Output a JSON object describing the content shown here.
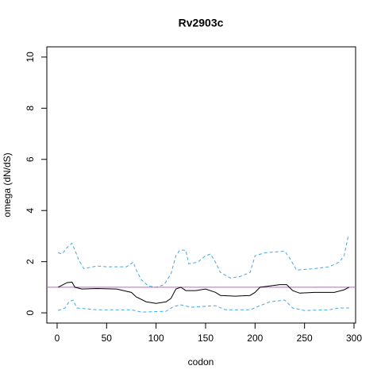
{
  "chart_data": {
    "type": "line",
    "title": "Rv2903c",
    "xlabel": "codon",
    "ylabel": "omega (dN/dS)",
    "xlim": [
      -10.4,
      301.6
    ],
    "ylim": [
      -0.4,
      10.4
    ],
    "xticks": [
      0,
      50,
      100,
      150,
      200,
      250,
      300
    ],
    "yticks": [
      0,
      2,
      4,
      6,
      8,
      10
    ],
    "reference_line": {
      "value": 1,
      "color": "#c060c0"
    },
    "series": [
      {
        "color": "#3fa9e6",
        "linestyle": "dashed",
        "x": [
          1,
          5,
          10,
          15,
          18,
          22,
          27,
          40,
          50,
          70,
          77,
          80,
          85,
          92,
          100,
          108,
          115,
          120,
          124,
          130,
          133,
          142,
          150,
          155,
          160,
          165,
          175,
          185,
          195,
          200,
          210,
          230,
          235,
          242,
          260,
          275,
          285,
          290,
          294
        ],
        "values": [
          2.35,
          2.3,
          2.55,
          2.72,
          2.45,
          2.05,
          1.73,
          1.83,
          1.8,
          1.8,
          1.98,
          1.67,
          1.3,
          1.05,
          1.0,
          1.1,
          1.52,
          2.23,
          2.45,
          2.45,
          1.92,
          1.98,
          2.23,
          2.3,
          1.98,
          1.58,
          1.36,
          1.42,
          1.58,
          2.23,
          2.35,
          2.41,
          2.14,
          1.67,
          1.73,
          1.8,
          1.98,
          2.23,
          2.97
        ]
      },
      {
        "color": "#000000",
        "linestyle": "solid",
        "x": [
          1,
          10,
          15,
          18,
          25,
          40,
          60,
          75,
          80,
          90,
          100,
          110,
          115,
          120,
          125,
          130,
          140,
          150,
          160,
          165,
          180,
          195,
          200,
          205,
          215,
          225,
          232,
          238,
          245,
          260,
          280,
          290,
          295
        ],
        "values": [
          1.0,
          1.18,
          1.2,
          1.0,
          0.93,
          0.95,
          0.93,
          0.8,
          0.62,
          0.43,
          0.37,
          0.43,
          0.56,
          0.93,
          1.0,
          0.87,
          0.87,
          0.93,
          0.8,
          0.68,
          0.65,
          0.68,
          0.8,
          1.0,
          1.05,
          1.1,
          1.1,
          0.87,
          0.77,
          0.8,
          0.8,
          0.9,
          1.0
        ]
      },
      {
        "color": "#3fa9e6",
        "linestyle": "dashed",
        "x": [
          1,
          8,
          12,
          16,
          20,
          40,
          75,
          85,
          110,
          118,
          125,
          135,
          160,
          170,
          195,
          205,
          215,
          230,
          238,
          250,
          275,
          285,
          295
        ],
        "values": [
          0.09,
          0.19,
          0.43,
          0.5,
          0.19,
          0.12,
          0.12,
          0.03,
          0.06,
          0.25,
          0.31,
          0.22,
          0.28,
          0.12,
          0.12,
          0.28,
          0.43,
          0.5,
          0.19,
          0.09,
          0.12,
          0.19,
          0.19
        ]
      }
    ]
  }
}
